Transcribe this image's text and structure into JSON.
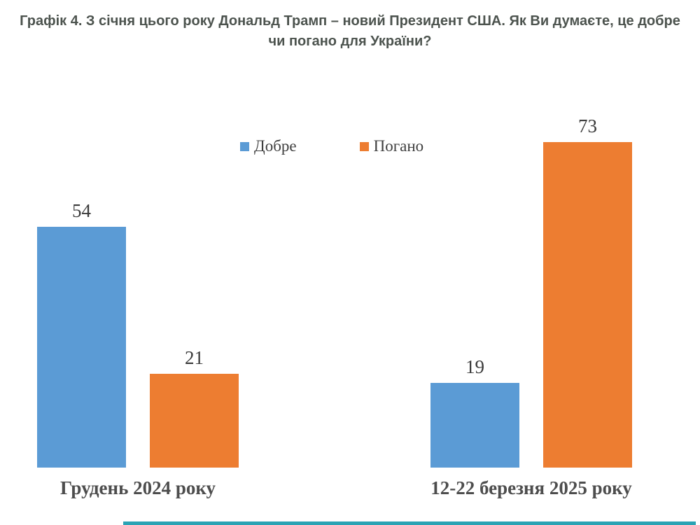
{
  "title": {
    "text": "Графік 4. З січня цього року Дональд Трамп – новий Президент США. Як Ви думаєте, це добре чи погано для України?"
  },
  "legend": {
    "items": [
      {
        "label": "Добре",
        "color": "#5B9BD5"
      },
      {
        "label": "Погано",
        "color": "#ED7D31"
      }
    ]
  },
  "chart_data": {
    "type": "bar",
    "title": "Графік 4. З січня цього року Дональд Трамп – новий Президент США. Як Ви думаєте, це добре чи погано для України?",
    "categories": [
      "Грудень 2024 року",
      "12-22 березня 2025 року"
    ],
    "series": [
      {
        "name": "Добре",
        "color": "#5B9BD5",
        "values": [
          54,
          19
        ]
      },
      {
        "name": "Погано",
        "color": "#ED7D31",
        "values": [
          21,
          73
        ]
      }
    ],
    "xlabel": "",
    "ylabel": "",
    "ylim": [
      0,
      80
    ],
    "grid": false,
    "axes_visible": false,
    "data_labels": true,
    "legend_position": "top-center"
  },
  "colors": {
    "good": "#5B9BD5",
    "bad": "#ED7D31",
    "title_text": "#4C534E",
    "value_label_text": "#3A3A3A",
    "category_label_text": "#4D4D4D",
    "accent_strip": "#2BA3B4"
  }
}
